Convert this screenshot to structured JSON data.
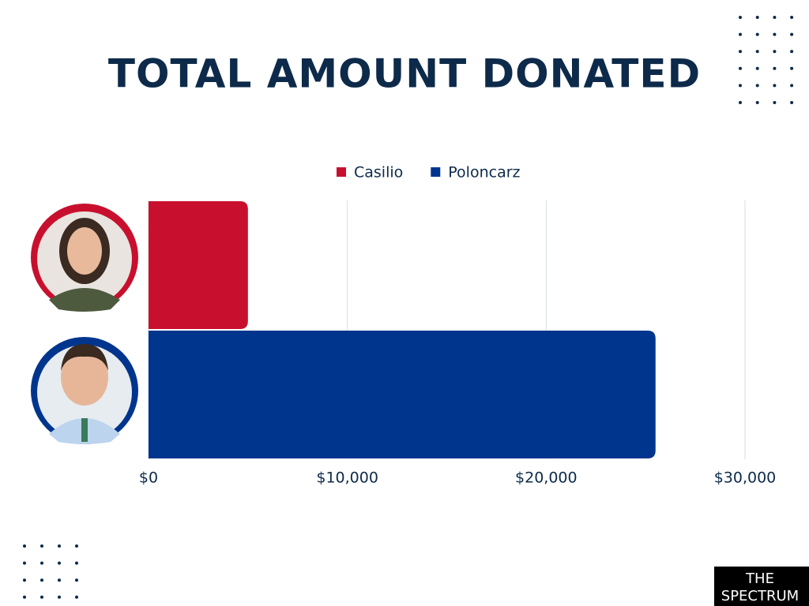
{
  "chart_data": {
    "type": "bar",
    "orientation": "horizontal",
    "title": "TOTAL AMOUNT DONATED",
    "categories": [
      null,
      null
    ],
    "series": [
      {
        "name": "Casilio",
        "color": "#c8102e",
        "values": [
          5000,
          null
        ]
      },
      {
        "name": "Poloncarz",
        "color": "#00358e",
        "values": [
          null,
          25500
        ]
      }
    ],
    "xlim": [
      0,
      30000
    ],
    "xticks": [
      {
        "value": 0,
        "label": "$0"
      },
      {
        "value": 10000,
        "label": "$10,000"
      },
      {
        "value": 20000,
        "label": "$20,000"
      },
      {
        "value": 30000,
        "label": "$30,000"
      }
    ],
    "grid": true,
    "legend": "top"
  },
  "logo": {
    "line1": "THE",
    "line2": "SPECTRUM"
  }
}
